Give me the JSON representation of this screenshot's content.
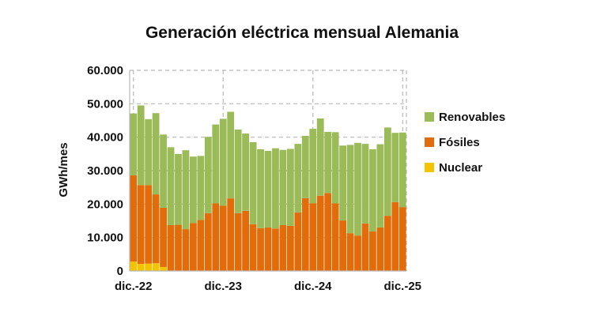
{
  "chart_data": {
    "type": "bar",
    "stacked": true,
    "title": "Generación eléctrica mensual Alemania",
    "ylabel": "GWh/mes",
    "xlabel": "",
    "ylim": [
      0,
      60000
    ],
    "yticks": [
      "0",
      "10.000",
      "20.000",
      "30.000",
      "40.000",
      "50.000",
      "60.000"
    ],
    "xticks": [
      {
        "index": 0,
        "label": "dic.-22"
      },
      {
        "index": 12,
        "label": "dic.-23"
      },
      {
        "index": 24,
        "label": "dic.-24"
      },
      {
        "index": 36,
        "label": "dic.-25"
      }
    ],
    "grid": true,
    "legend_position": "right",
    "colors": {
      "Nuclear": "#f5c400",
      "Fósiles": "#e36c0a",
      "Renovables": "#9bbb59",
      "grid": "#b7b7b7"
    },
    "series": [
      {
        "name": "Nuclear",
        "values": [
          2800,
          2100,
          2200,
          2300,
          1200,
          0,
          0,
          0,
          0,
          0,
          0,
          0,
          0,
          0,
          0,
          0,
          0,
          0,
          0,
          0,
          0,
          0,
          0,
          0,
          0,
          0,
          0,
          0,
          0,
          0,
          0,
          0,
          0,
          0,
          0,
          0,
          0
        ]
      },
      {
        "name": "Fósiles",
        "values": [
          25800,
          23600,
          23500,
          20600,
          17700,
          13700,
          13800,
          12500,
          14300,
          15300,
          17300,
          20200,
          19500,
          21700,
          17300,
          18000,
          14000,
          12800,
          13000,
          12700,
          13700,
          13500,
          17500,
          21800,
          20200,
          22500,
          23300,
          20200,
          15100,
          11300,
          10600,
          14200,
          11800,
          13000,
          16500,
          20600,
          19100
        ]
      },
      {
        "name": "Renovables",
        "values": [
          18500,
          23800,
          19700,
          24300,
          21900,
          23300,
          21200,
          23600,
          19900,
          19100,
          22800,
          23600,
          26000,
          25900,
          25000,
          23100,
          24500,
          23600,
          22900,
          24000,
          22500,
          23000,
          20500,
          18600,
          22300,
          23100,
          18300,
          21300,
          22400,
          26400,
          27700,
          23800,
          24600,
          24900,
          26400,
          20700,
          22300
        ]
      }
    ]
  }
}
